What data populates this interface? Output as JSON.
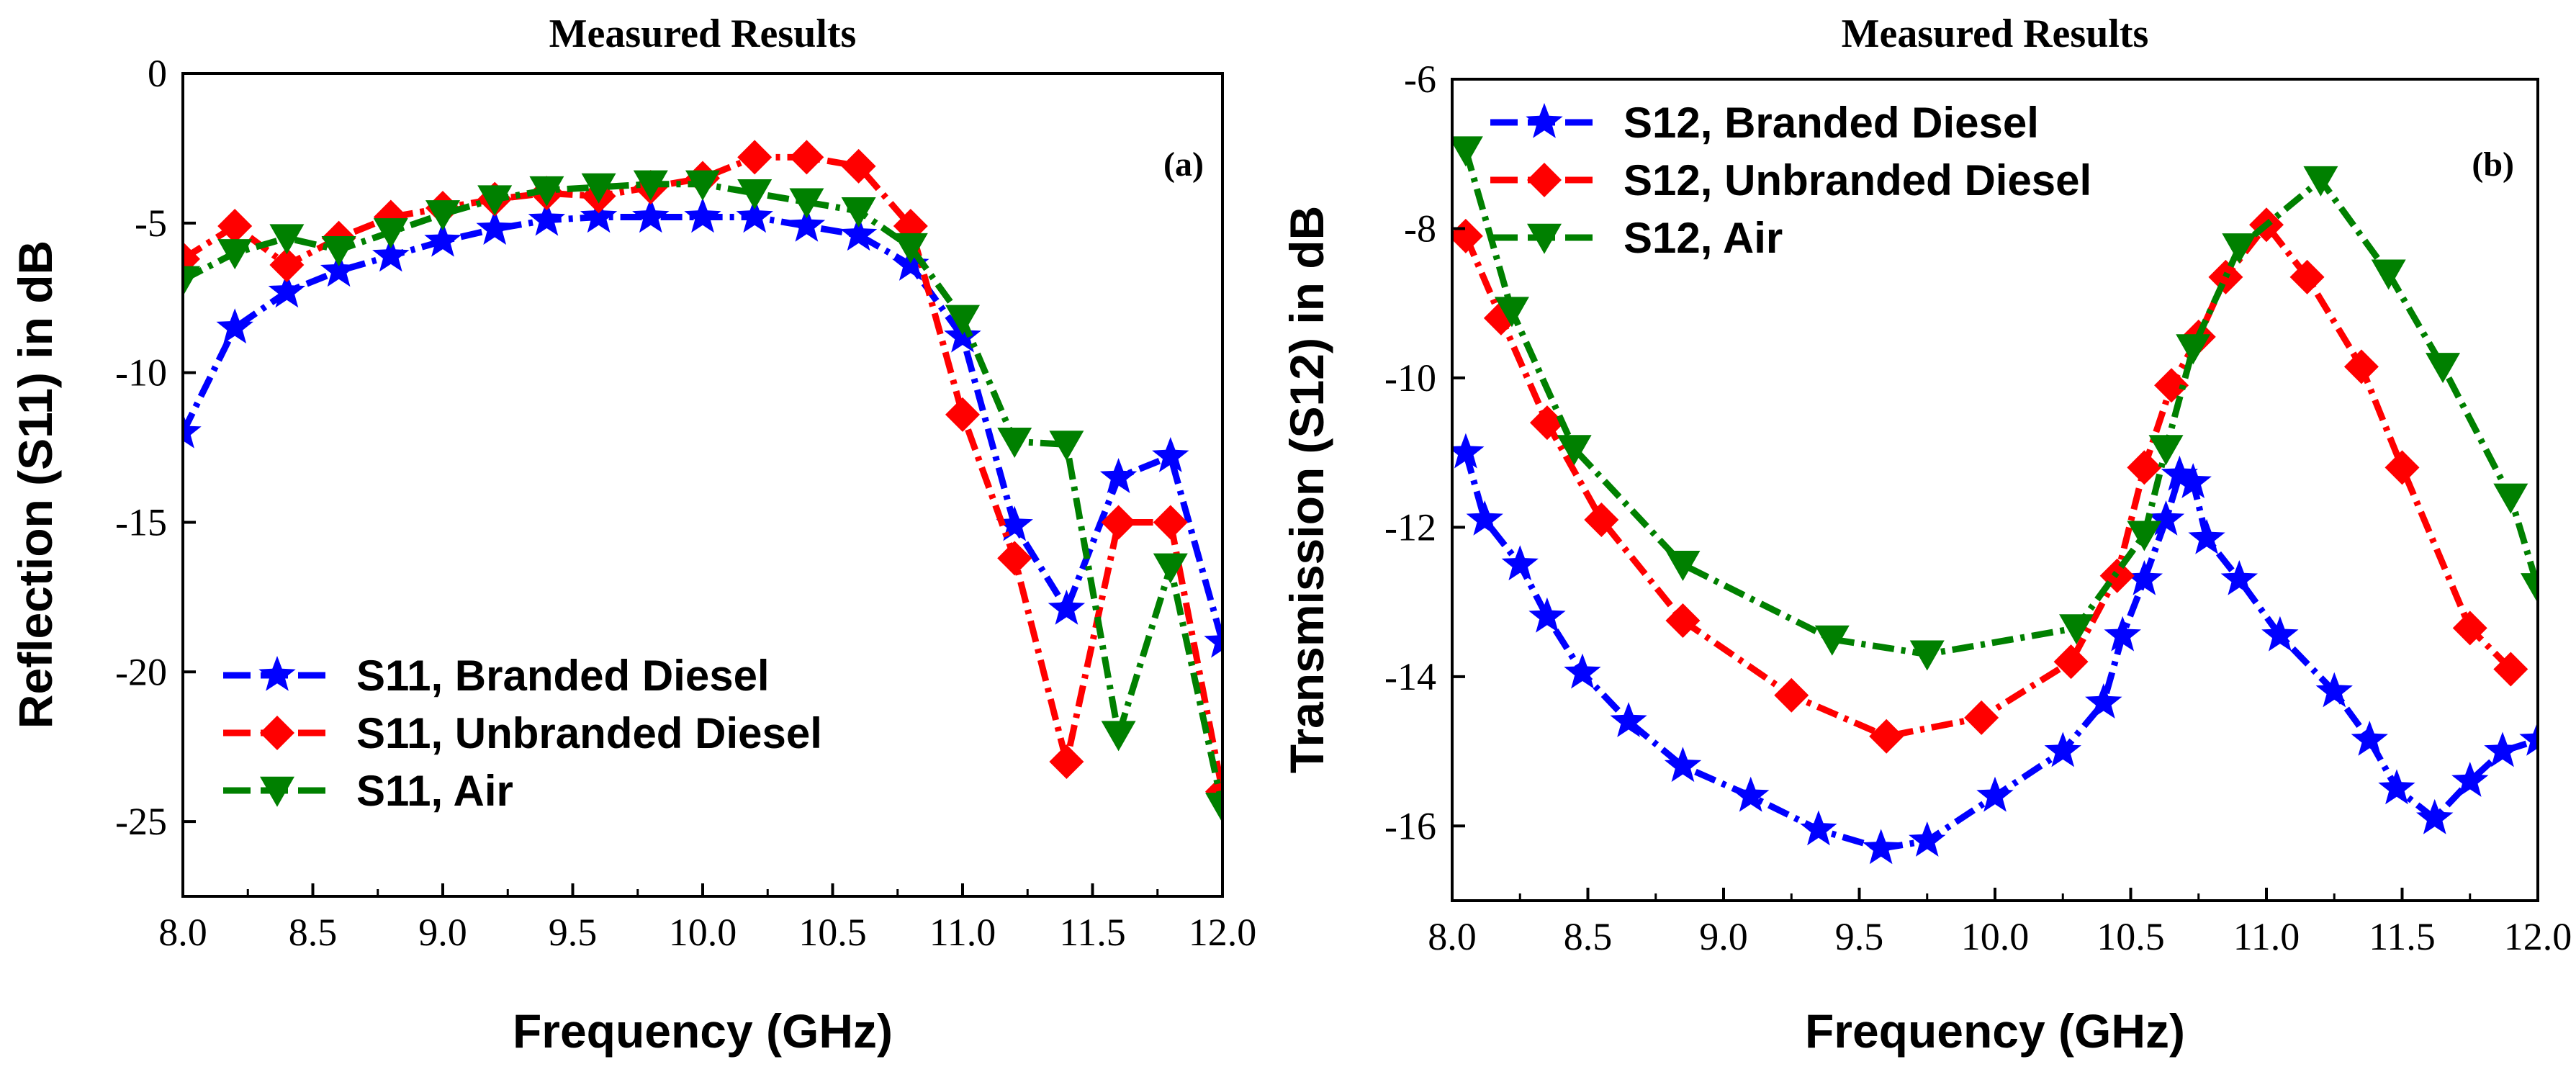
{
  "colors": {
    "blue": "#0000ff",
    "red": "#ff0000",
    "green": "#008000",
    "axis": "#000000"
  },
  "chart_data": [
    {
      "type": "line",
      "panel_label": "(a)",
      "title": "Measured Results",
      "xlabel": "Frequency (GHz)",
      "ylabel": "Reflection (S11) in dB",
      "xlim": [
        8.0,
        12.0
      ],
      "ylim": [
        -27.5,
        0
      ],
      "x_ticks": [
        8.0,
        8.5,
        9.0,
        9.5,
        10.0,
        10.5,
        11.0,
        11.5,
        12.0
      ],
      "x_tick_labels": [
        "8.0",
        "8.5",
        "9.0",
        "9.5",
        "10.0",
        "10.5",
        "11.0",
        "11.5",
        "12.0"
      ],
      "y_ticks": [
        0,
        -5,
        -10,
        -15,
        -20,
        -25
      ],
      "y_tick_labels": [
        "0",
        "-5",
        "-10",
        "-15",
        "-20",
        "-25"
      ],
      "legend_position": "bottom-left",
      "series": [
        {
          "name": "S11, Branded Diesel",
          "color": "blue",
          "marker": "star",
          "x": [
            8.0,
            8.2,
            8.4,
            8.6,
            8.8,
            9.0,
            9.2,
            9.4,
            9.6,
            9.8,
            10.0,
            10.2,
            10.4,
            10.6,
            10.8,
            11.0,
            11.2,
            11.4,
            11.6,
            11.8,
            12.0
          ],
          "y": [
            -12.0,
            -8.5,
            -7.3,
            -6.6,
            -6.1,
            -5.6,
            -5.2,
            -4.9,
            -4.8,
            -4.8,
            -4.8,
            -4.8,
            -5.1,
            -5.4,
            -6.4,
            -8.8,
            -15.1,
            -17.9,
            -13.5,
            -12.8,
            -19.0
          ]
        },
        {
          "name": "S11, Unbranded Diesel",
          "color": "red",
          "marker": "diamond",
          "x": [
            8.0,
            8.2,
            8.4,
            8.6,
            8.8,
            9.0,
            9.2,
            9.4,
            9.6,
            9.8,
            10.0,
            10.2,
            10.4,
            10.6,
            10.8,
            11.0,
            11.2,
            11.4,
            11.6,
            11.8,
            12.0
          ],
          "y": [
            -6.2,
            -5.1,
            -6.4,
            -5.5,
            -4.8,
            -4.5,
            -4.2,
            -4.0,
            -4.1,
            -3.8,
            -3.5,
            -2.8,
            -2.8,
            -3.1,
            -5.1,
            -11.4,
            -16.2,
            -23.0,
            -15.0,
            -15.0,
            -24.0
          ]
        },
        {
          "name": "S11, Air",
          "color": "green",
          "marker": "triangle-down",
          "x": [
            8.0,
            8.2,
            8.4,
            8.6,
            8.8,
            9.0,
            9.2,
            9.4,
            9.6,
            9.8,
            10.0,
            10.2,
            10.4,
            10.6,
            10.8,
            11.0,
            11.2,
            11.4,
            11.6,
            11.8,
            12.0
          ],
          "y": [
            -6.9,
            -6.0,
            -5.5,
            -5.9,
            -5.3,
            -4.7,
            -4.2,
            -3.9,
            -3.8,
            -3.7,
            -3.7,
            -4.0,
            -4.3,
            -4.6,
            -5.8,
            -8.2,
            -12.3,
            -12.4,
            -22.1,
            -16.5,
            -24.5
          ]
        }
      ]
    },
    {
      "type": "line",
      "panel_label": "(b)",
      "title": "Measured Results",
      "xlabel": "Frequency (GHz)",
      "ylabel": "Transmission (S12) in dB",
      "xlim": [
        8.0,
        12.0
      ],
      "ylim": [
        -17,
        -6
      ],
      "x_ticks": [
        8.0,
        8.5,
        9.0,
        9.5,
        10.0,
        10.5,
        11.0,
        11.5,
        12.0
      ],
      "x_tick_labels": [
        "8.0",
        "8.5",
        "9.0",
        "9.5",
        "10.0",
        "10.5",
        "11.0",
        "11.5",
        "12.0"
      ],
      "y_ticks": [
        -6,
        -8,
        -10,
        -12,
        -14,
        -16
      ],
      "y_tick_labels": [
        "-6",
        "-8",
        "-10",
        "-12",
        "-14",
        "-16"
      ],
      "legend_position": "top-left",
      "series": [
        {
          "name": "S12, Branded Diesel",
          "color": "blue",
          "marker": "star",
          "x": [
            8.05,
            8.12,
            8.25,
            8.35,
            8.48,
            8.65,
            8.85,
            9.1,
            9.35,
            9.58,
            9.75,
            10.0,
            10.25,
            10.4,
            10.47,
            10.55,
            10.63,
            10.68,
            10.73,
            10.78,
            10.9,
            11.05,
            11.25,
            11.38,
            11.48,
            11.62,
            11.75,
            11.87,
            12.0
          ],
          "y": [
            -11.0,
            -11.9,
            -12.5,
            -13.2,
            -13.95,
            -14.6,
            -15.2,
            -15.6,
            -16.05,
            -16.3,
            -16.2,
            -15.6,
            -15.0,
            -14.35,
            -13.45,
            -12.7,
            -11.9,
            -11.3,
            -11.4,
            -12.15,
            -12.7,
            -13.45,
            -14.2,
            -14.85,
            -15.5,
            -15.9,
            -15.4,
            -15.0,
            -14.85
          ]
        },
        {
          "name": "S12, Unbranded Diesel",
          "color": "red",
          "marker": "diamond",
          "x": [
            8.05,
            8.18,
            8.35,
            8.55,
            8.85,
            9.25,
            9.6,
            9.95,
            10.28,
            10.45,
            10.55,
            10.65,
            10.75,
            10.85,
            11.0,
            11.15,
            11.35,
            11.5,
            11.75,
            11.9
          ],
          "y": [
            -8.1,
            -9.2,
            -10.6,
            -11.9,
            -13.25,
            -14.25,
            -14.8,
            -14.55,
            -13.8,
            -12.65,
            -11.2,
            -10.1,
            -9.45,
            -8.65,
            -7.95,
            -8.65,
            -9.85,
            -11.2,
            -13.35,
            -13.9
          ]
        },
        {
          "name": "S12, Air",
          "color": "green",
          "marker": "triangle-down",
          "x": [
            8.05,
            8.22,
            8.45,
            8.85,
            9.4,
            9.75,
            10.3,
            10.55,
            10.63,
            10.73,
            10.9,
            11.2,
            11.45,
            11.65,
            11.9,
            12.0
          ],
          "y": [
            -6.95,
            -9.1,
            -10.95,
            -12.5,
            -13.5,
            -13.7,
            -13.35,
            -12.1,
            -10.95,
            -9.6,
            -8.25,
            -7.35,
            -8.6,
            -9.85,
            -11.6,
            -12.8
          ]
        }
      ]
    }
  ]
}
